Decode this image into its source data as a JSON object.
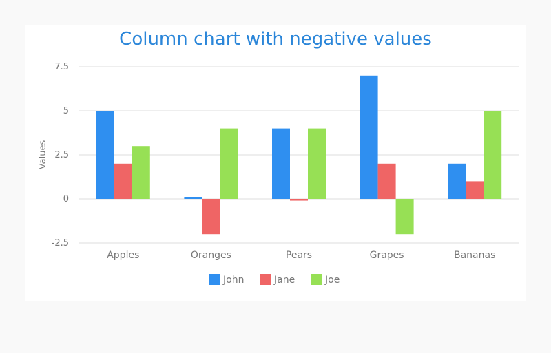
{
  "chart_data": {
    "type": "bar",
    "title": "Column chart with negative values",
    "xlabel": "",
    "ylabel": "Values",
    "ylim": [
      -2.5,
      7.5
    ],
    "yticks": [
      "7.5",
      "5",
      "2.5",
      "0",
      "-2.5"
    ],
    "ytick_values": [
      7.5,
      5,
      2.5,
      0,
      -2.5
    ],
    "categories": [
      "Apples",
      "Oranges",
      "Pears",
      "Grapes",
      "Bananas"
    ],
    "series": [
      {
        "name": "John",
        "color": "#2f8ff0",
        "values": [
          5,
          0.1,
          4,
          7,
          2
        ]
      },
      {
        "name": "Jane",
        "color": "#ef6565",
        "values": [
          2,
          -2,
          -0.1,
          2,
          1
        ]
      },
      {
        "name": "Joe",
        "color": "#97e055",
        "values": [
          3,
          4,
          4,
          -2,
          5
        ]
      }
    ],
    "grid": true,
    "legend_position": "bottom-center"
  },
  "colors": {
    "title": "#2b86d9",
    "axis_text": "#777777",
    "grid": "#dddddd",
    "background": "#ffffff",
    "page": "#f9f9f9"
  }
}
